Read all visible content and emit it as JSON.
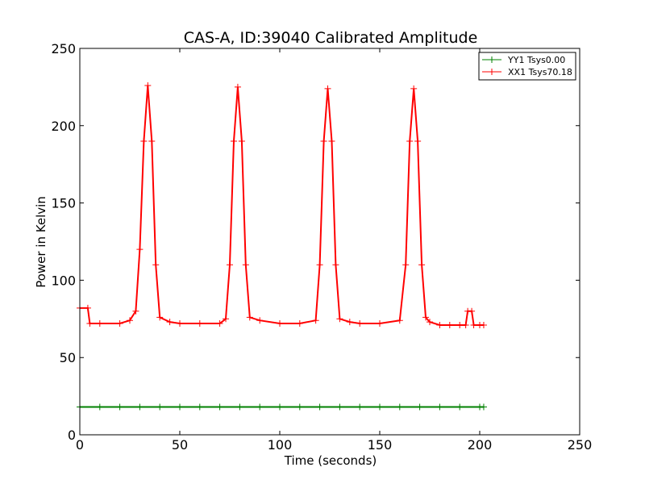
{
  "chart_data": {
    "type": "line",
    "title": "CAS-A, ID:39040 Calibrated Amplitude",
    "xlabel": "Time (seconds)",
    "ylabel": "Power in Kelvin",
    "xlim": [
      0,
      250
    ],
    "ylim": [
      0,
      250
    ],
    "xticks": [
      "0",
      "50",
      "100",
      "150",
      "200",
      "250"
    ],
    "yticks": [
      "0",
      "50",
      "100",
      "150",
      "200",
      "250"
    ],
    "grid": false,
    "legend_position": "top-right",
    "marker": "+",
    "series": [
      {
        "name": "YY1 Tsys0.00",
        "color": "#008000",
        "x": [
          0,
          10,
          20,
          30,
          40,
          50,
          60,
          70,
          80,
          90,
          100,
          110,
          120,
          130,
          140,
          150,
          160,
          170,
          180,
          190,
          200,
          202
        ],
        "y": [
          18,
          18,
          18,
          18,
          18,
          18,
          18,
          18,
          18,
          18,
          18,
          18,
          18,
          18,
          18,
          18,
          18,
          18,
          18,
          18,
          18,
          18
        ]
      },
      {
        "name": "XX1 Tsys70.18",
        "color": "#ff0000",
        "x": [
          0,
          4,
          5,
          10,
          20,
          25,
          28,
          30,
          32,
          34,
          36,
          38,
          40,
          45,
          50,
          60,
          70,
          73,
          75,
          77,
          79,
          81,
          83,
          85,
          90,
          100,
          110,
          118,
          120,
          122,
          124,
          126,
          128,
          130,
          135,
          140,
          150,
          160,
          163,
          165,
          167,
          169,
          171,
          173,
          175,
          180,
          185,
          190,
          193,
          194,
          196,
          197,
          200,
          202
        ],
        "y": [
          82,
          82,
          72,
          72,
          72,
          74,
          80,
          120,
          190,
          226,
          190,
          110,
          76,
          73,
          72,
          72,
          72,
          75,
          110,
          190,
          225,
          190,
          110,
          76,
          74,
          72,
          72,
          74,
          110,
          190,
          224,
          190,
          110,
          75,
          73,
          72,
          72,
          74,
          110,
          190,
          224,
          190,
          110,
          76,
          73,
          71,
          71,
          71,
          71,
          80,
          80,
          71,
          71,
          71
        ]
      }
    ]
  }
}
